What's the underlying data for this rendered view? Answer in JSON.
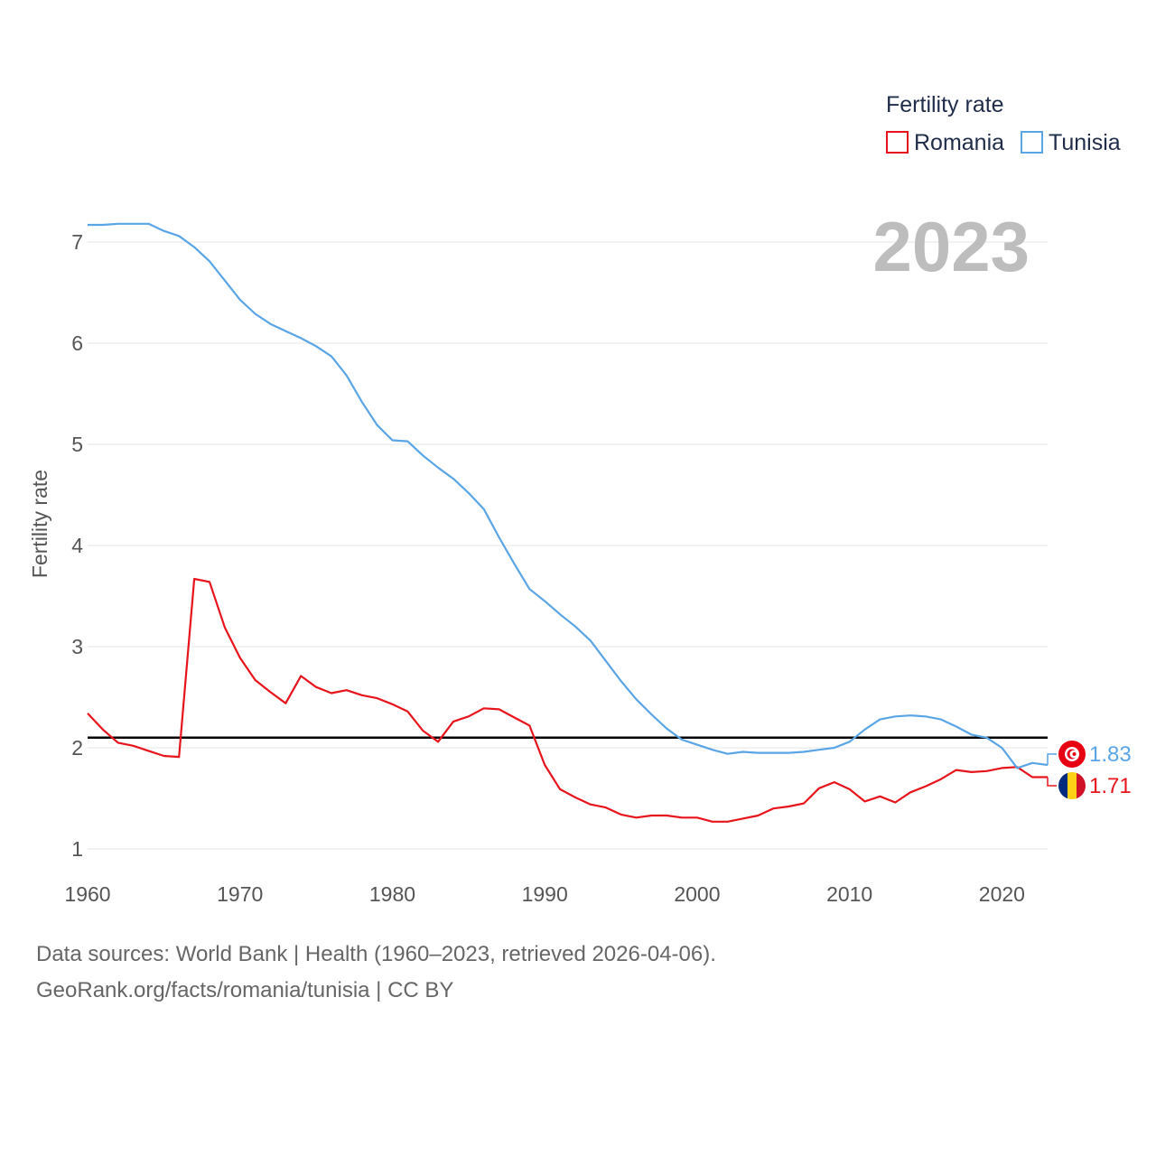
{
  "chart_data": {
    "type": "line",
    "title": "",
    "year_label": "2023",
    "xlabel": "",
    "ylabel": "Fertility rate",
    "xlim": [
      1960,
      2023
    ],
    "ylim": [
      1,
      7
    ],
    "x_ticks": [
      1960,
      1970,
      1980,
      1990,
      2000,
      2010,
      2020
    ],
    "y_ticks": [
      1,
      2,
      3,
      4,
      5,
      6,
      7
    ],
    "legend": {
      "title": "Fertility rate",
      "position": "top-right"
    },
    "reference_line": {
      "value": 2.1,
      "color": "#000000"
    },
    "x": [
      1960,
      1961,
      1962,
      1963,
      1964,
      1965,
      1966,
      1967,
      1968,
      1969,
      1970,
      1971,
      1972,
      1973,
      1974,
      1975,
      1976,
      1977,
      1978,
      1979,
      1980,
      1981,
      1982,
      1983,
      1984,
      1985,
      1986,
      1987,
      1988,
      1989,
      1990,
      1991,
      1992,
      1993,
      1994,
      1995,
      1996,
      1997,
      1998,
      1999,
      2000,
      2001,
      2002,
      2003,
      2004,
      2005,
      2006,
      2007,
      2008,
      2009,
      2010,
      2011,
      2012,
      2013,
      2014,
      2015,
      2016,
      2017,
      2018,
      2019,
      2020,
      2021,
      2022,
      2023
    ],
    "series": [
      {
        "name": "Romania",
        "color": "#e8141c",
        "end_label": "1.71",
        "values": [
          2.34,
          2.18,
          2.05,
          2.02,
          1.97,
          1.92,
          1.91,
          3.67,
          3.64,
          3.19,
          2.89,
          2.67,
          2.55,
          2.44,
          2.71,
          2.6,
          2.54,
          2.57,
          2.52,
          2.49,
          2.43,
          2.36,
          2.17,
          2.06,
          2.26,
          2.31,
          2.39,
          2.38,
          2.3,
          2.22,
          1.83,
          1.59,
          1.51,
          1.44,
          1.41,
          1.34,
          1.31,
          1.33,
          1.33,
          1.31,
          1.31,
          1.27,
          1.27,
          1.3,
          1.33,
          1.4,
          1.42,
          1.45,
          1.6,
          1.66,
          1.59,
          1.47,
          1.52,
          1.46,
          1.56,
          1.62,
          1.69,
          1.78,
          1.76,
          1.77,
          1.8,
          1.81,
          1.71,
          1.71
        ]
      },
      {
        "name": "Tunisia",
        "color": "#5aa5e6",
        "end_label": "1.83",
        "values": [
          7.17,
          7.17,
          7.18,
          7.18,
          7.18,
          7.11,
          7.06,
          6.95,
          6.81,
          6.62,
          6.43,
          6.29,
          6.19,
          6.12,
          6.05,
          5.97,
          5.87,
          5.68,
          5.42,
          5.19,
          5.04,
          5.03,
          4.89,
          4.77,
          4.66,
          4.52,
          4.36,
          4.08,
          3.82,
          3.57,
          3.45,
          3.32,
          3.2,
          3.06,
          2.86,
          2.66,
          2.48,
          2.33,
          2.19,
          2.08,
          2.03,
          1.98,
          1.94,
          1.96,
          1.95,
          1.95,
          1.95,
          1.96,
          1.98,
          2.0,
          2.06,
          2.18,
          2.28,
          2.31,
          2.32,
          2.31,
          2.28,
          2.21,
          2.13,
          2.1,
          2.0,
          1.8,
          1.85,
          1.83
        ]
      }
    ]
  },
  "footer": {
    "line1": "Data sources: World Bank | Health (1960–2023, retrieved 2026-04-06).",
    "line2": "GeoRank.org/facts/romania/tunisia | CC BY"
  }
}
